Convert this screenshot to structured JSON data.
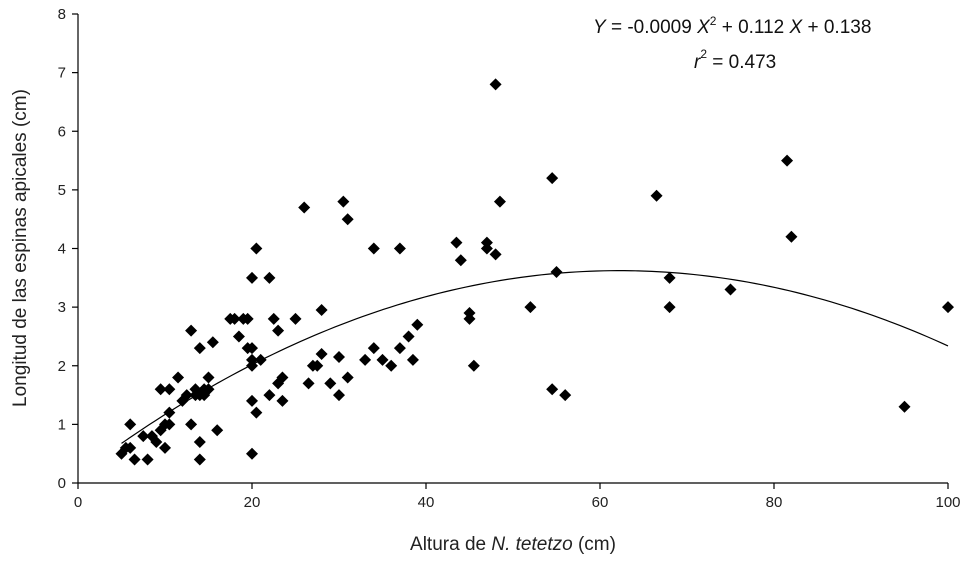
{
  "chart_data": {
    "type": "scatter",
    "xlabel": "Altura de N. tetetzo (cm)",
    "xlabel_parts": {
      "prefix": "Altura de ",
      "italic": "N. tetetzo",
      "suffix": " (cm)"
    },
    "ylabel": "Longitud de las espinas apicales (cm)",
    "xlim": [
      0,
      100
    ],
    "ylim": [
      0,
      8
    ],
    "xticks": [
      0,
      20,
      40,
      60,
      80,
      100
    ],
    "yticks": [
      0,
      1,
      2,
      3,
      4,
      5,
      6,
      7,
      8
    ],
    "grid": false,
    "legend": "none",
    "marker": "diamond",
    "color": "#000000",
    "equation": {
      "y_var": "Y",
      "equals_a": " = -0.0009 ",
      "x2_var": "X",
      "x2_exp": "2",
      "plus_b": " + 0.112 ",
      "x_var": "X",
      "plus_c": " + 0.138",
      "r_var": "r",
      "r_exp": "2",
      "r_value": " = 0.473"
    },
    "fit": {
      "a": -0.0009,
      "b": 0.112,
      "c": 0.138,
      "x_range": [
        5,
        100
      ]
    },
    "points": [
      [
        5,
        0.5
      ],
      [
        5.5,
        0.6
      ],
      [
        6,
        1.0
      ],
      [
        6.5,
        0.4
      ],
      [
        6,
        0.6
      ],
      [
        7.5,
        0.8
      ],
      [
        8,
        0.4
      ],
      [
        8.5,
        0.8
      ],
      [
        9,
        0.7
      ],
      [
        9.5,
        0.9
      ],
      [
        9.5,
        1.6
      ],
      [
        10,
        1.0
      ],
      [
        10,
        0.6
      ],
      [
        10.5,
        1.2
      ],
      [
        10.5,
        1.6
      ],
      [
        10.5,
        1.0
      ],
      [
        11.5,
        1.8
      ],
      [
        12,
        1.4
      ],
      [
        12.5,
        1.5
      ],
      [
        13,
        2.6
      ],
      [
        13,
        1.0
      ],
      [
        13.5,
        1.6
      ],
      [
        13.5,
        1.5
      ],
      [
        14,
        2.3
      ],
      [
        14,
        0.7
      ],
      [
        14,
        0.4
      ],
      [
        14,
        1.5
      ],
      [
        14.5,
        1.6
      ],
      [
        14.5,
        1.5
      ],
      [
        15,
        1.8
      ],
      [
        15,
        1.6
      ],
      [
        15.5,
        2.4
      ],
      [
        16,
        0.9
      ],
      [
        17.5,
        2.8
      ],
      [
        18,
        2.8
      ],
      [
        18.5,
        2.5
      ],
      [
        19,
        2.8
      ],
      [
        19.5,
        2.3
      ],
      [
        19.5,
        2.8
      ],
      [
        20,
        2.1
      ],
      [
        20,
        2.3
      ],
      [
        20,
        2.0
      ],
      [
        20,
        1.4
      ],
      [
        20,
        0.5
      ],
      [
        20,
        3.5
      ],
      [
        20.5,
        4.0
      ],
      [
        20.5,
        1.2
      ],
      [
        21,
        2.1
      ],
      [
        22,
        3.5
      ],
      [
        22,
        1.5
      ],
      [
        22.5,
        2.8
      ],
      [
        23,
        1.7
      ],
      [
        23,
        2.6
      ],
      [
        23.5,
        1.8
      ],
      [
        23.5,
        1.4
      ],
      [
        25,
        2.8
      ],
      [
        26,
        4.7
      ],
      [
        26.5,
        1.7
      ],
      [
        27,
        2.0
      ],
      [
        27.5,
        2.0
      ],
      [
        28,
        2.2
      ],
      [
        28,
        2.95
      ],
      [
        29,
        1.7
      ],
      [
        30,
        2.15
      ],
      [
        30,
        1.5
      ],
      [
        30.5,
        4.8
      ],
      [
        31,
        4.5
      ],
      [
        31,
        1.8
      ],
      [
        33,
        2.1
      ],
      [
        34,
        4.0
      ],
      [
        34,
        2.3
      ],
      [
        35,
        2.1
      ],
      [
        36,
        2.0
      ],
      [
        37,
        2.3
      ],
      [
        37,
        4.0
      ],
      [
        38,
        2.5
      ],
      [
        38.5,
        2.1
      ],
      [
        39,
        2.7
      ],
      [
        43.5,
        4.1
      ],
      [
        44,
        3.8
      ],
      [
        45,
        2.9
      ],
      [
        45,
        2.8
      ],
      [
        45.5,
        2.0
      ],
      [
        47,
        4.1
      ],
      [
        47,
        4.0
      ],
      [
        48,
        3.9
      ],
      [
        48,
        6.8
      ],
      [
        48.5,
        4.8
      ],
      [
        52,
        3.0
      ],
      [
        54.5,
        5.2
      ],
      [
        54.5,
        1.6
      ],
      [
        55,
        3.6
      ],
      [
        56,
        1.5
      ],
      [
        66.5,
        4.9
      ],
      [
        68,
        3.5
      ],
      [
        68,
        3.0
      ],
      [
        75,
        3.3
      ],
      [
        81.5,
        5.5
      ],
      [
        82,
        4.2
      ],
      [
        95,
        1.3
      ],
      [
        100,
        3.0
      ]
    ]
  }
}
